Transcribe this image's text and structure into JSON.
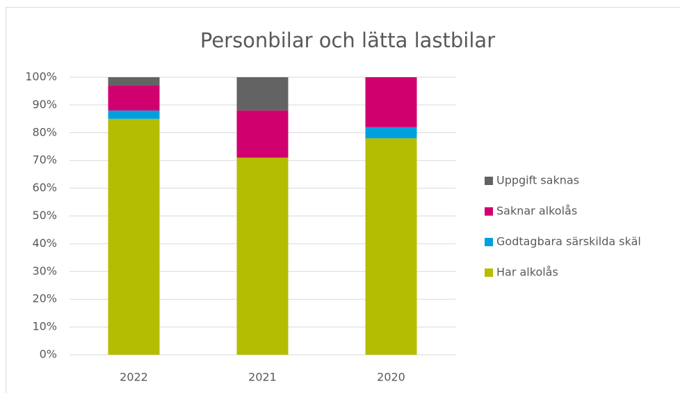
{
  "chart_data": {
    "type": "stacked_bar",
    "title": "Personbilar och lätta lastbilar",
    "categories": [
      "2022",
      "2021",
      "2020"
    ],
    "series": [
      {
        "name": "Har alkolås",
        "color": "#b5bd00",
        "values": [
          85,
          71,
          78
        ]
      },
      {
        "name": "Godtagbara särskilda skäl",
        "color": "#00a0df",
        "values": [
          3,
          0,
          4
        ]
      },
      {
        "name": "Saknar alkolås",
        "color": "#d1006f",
        "values": [
          9,
          17,
          18
        ]
      },
      {
        "name": "Uppgift saknas",
        "color": "#636363",
        "values": [
          3,
          12,
          0
        ]
      }
    ],
    "ylim": [
      0,
      100
    ],
    "yticks": [
      {
        "value": 0,
        "label": "0%"
      },
      {
        "value": 10,
        "label": "10%"
      },
      {
        "value": 20,
        "label": "20%"
      },
      {
        "value": 30,
        "label": "30%"
      },
      {
        "value": 40,
        "label": "40%"
      },
      {
        "value": 50,
        "label": "50%"
      },
      {
        "value": 60,
        "label": "60%"
      },
      {
        "value": 70,
        "label": "70%"
      },
      {
        "value": 80,
        "label": "80%"
      },
      {
        "value": 90,
        "label": "90%"
      },
      {
        "value": 100,
        "label": "100%"
      }
    ],
    "grid": true,
    "legend": "right"
  }
}
